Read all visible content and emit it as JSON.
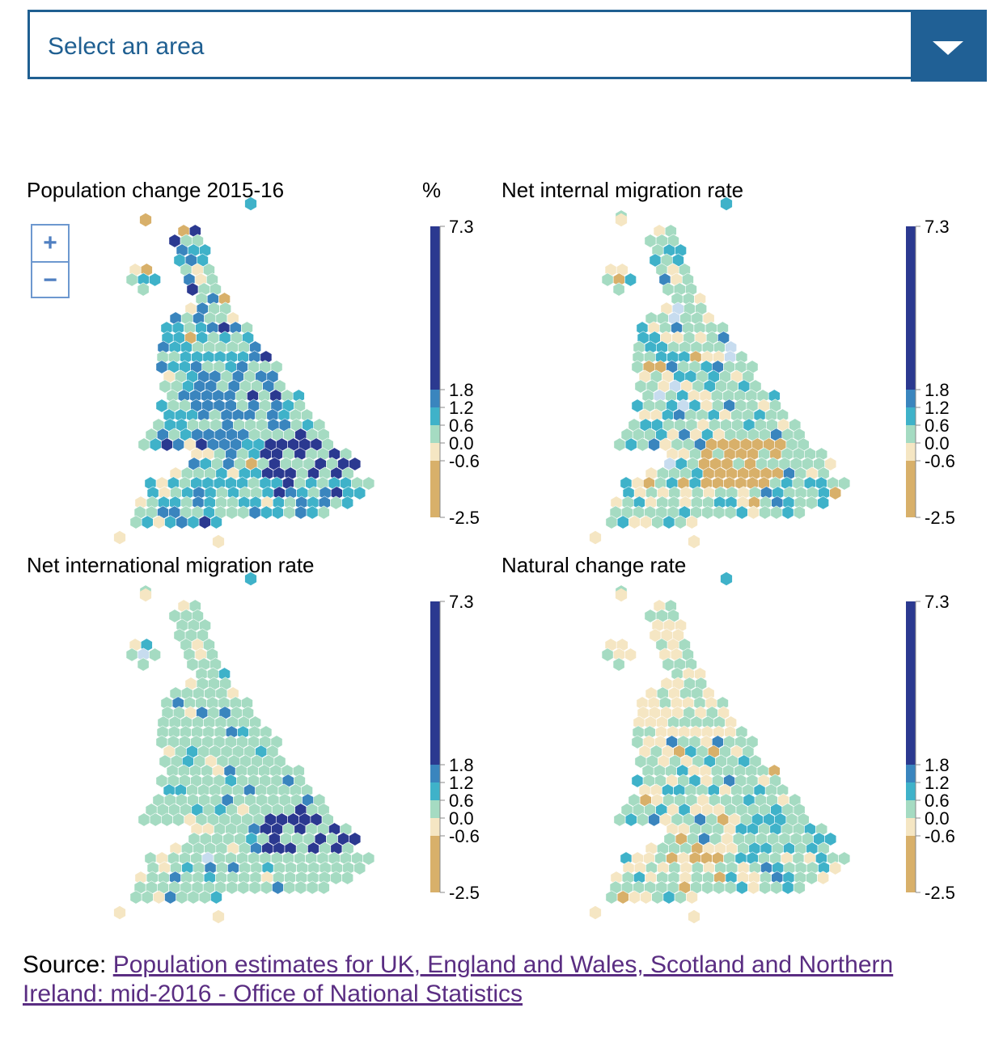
{
  "area_select": {
    "placeholder": "Select an area"
  },
  "zoom": {
    "in_label": "+",
    "out_label": "−"
  },
  "unit_label": "%",
  "legend": {
    "ticks": [
      "7.3",
      "1.8",
      "1.2",
      "0.6",
      "0.0",
      "-0.6",
      "-2.5"
    ],
    "bands": [
      {
        "from": 1.8,
        "to": 7.3,
        "color": "#2b3990"
      },
      {
        "from": 1.2,
        "to": 1.8,
        "color": "#3a85be"
      },
      {
        "from": 0.6,
        "to": 1.2,
        "color": "#3fb2c9"
      },
      {
        "from": 0.0,
        "to": 0.6,
        "color": "#a5dbc2"
      },
      {
        "from": -0.6,
        "to": 0.0,
        "color": "#f5e6c3"
      },
      {
        "from": -2.5,
        "to": -0.6,
        "color": "#d8b06a"
      }
    ]
  },
  "maps": [
    {
      "title": "Population change 2015-16",
      "style": "pop"
    },
    {
      "title": "Net internal migration rate",
      "style": "internal"
    },
    {
      "title": "Net international migration rate",
      "style": "international"
    },
    {
      "title": "Natural change rate",
      "style": "natural"
    }
  ],
  "source": {
    "label": "Source: ",
    "link_text": "Population estimates for UK, England and Wales, Scotland and Northern Ireland: mid-2016 - Office of National Statistics"
  }
}
